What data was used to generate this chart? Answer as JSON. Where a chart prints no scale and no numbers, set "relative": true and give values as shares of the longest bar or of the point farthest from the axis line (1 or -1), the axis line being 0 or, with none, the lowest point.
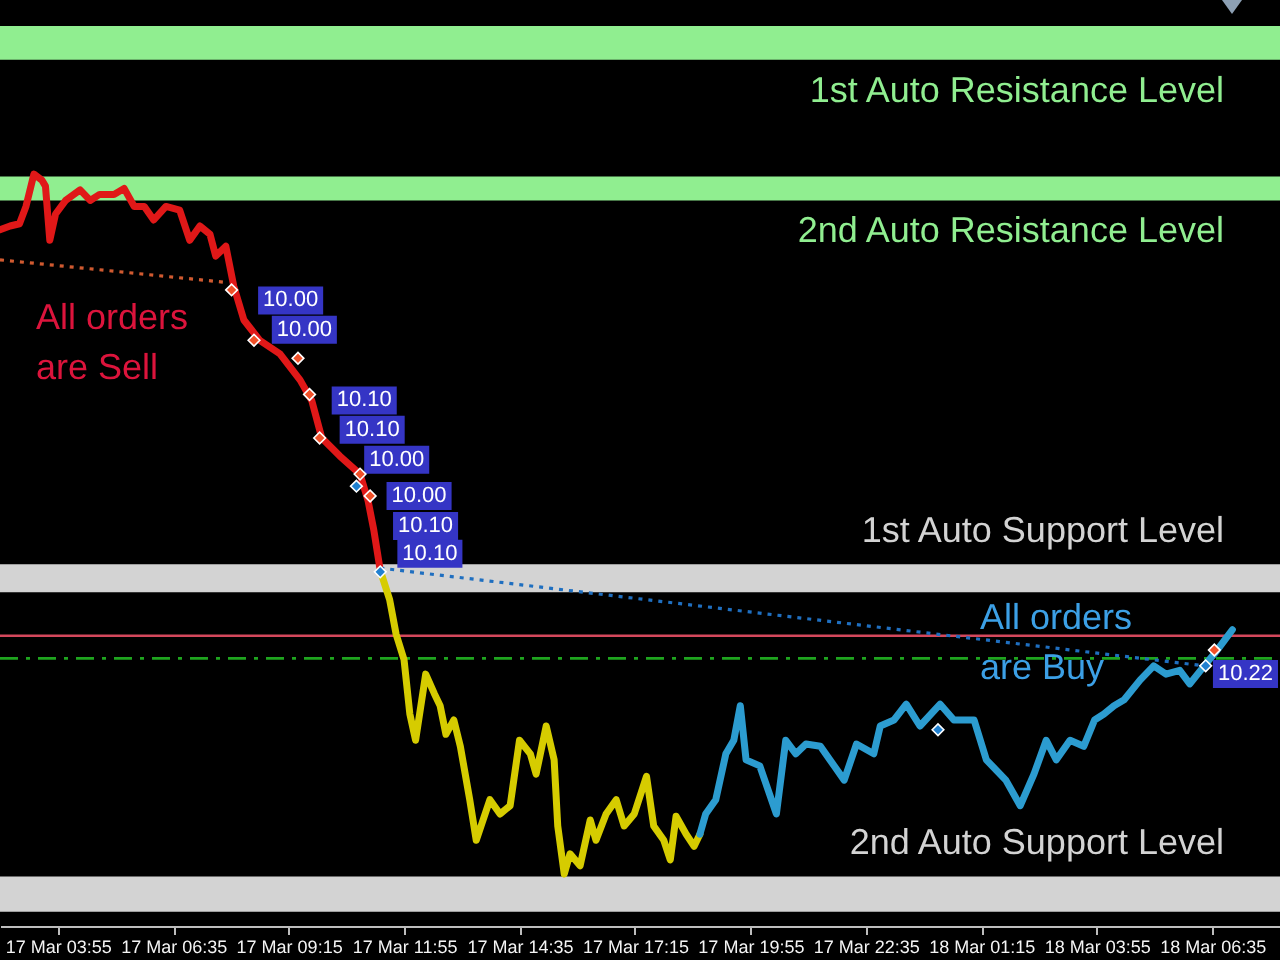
{
  "chart_data": {
    "type": "line",
    "relative": true,
    "xlim": [
      "--03-17T02:35",
      "--03-18T08:09"
    ],
    "xticks": [
      {
        "value": "--03-17T03:55",
        "label": "17 Mar 03:55"
      },
      {
        "value": "--03-17T06:35",
        "label": "17 Mar 06:35"
      },
      {
        "value": "--03-17T09:15",
        "label": "17 Mar 09:15"
      },
      {
        "value": "--03-17T11:55",
        "label": "17 Mar 11:55"
      },
      {
        "value": "--03-17T14:35",
        "label": "17 Mar 14:35"
      },
      {
        "value": "--03-17T17:15",
        "label": "17 Mar 17:15"
      },
      {
        "value": "--03-17T19:55",
        "label": "17 Mar 19:55"
      },
      {
        "value": "--03-17T22:35",
        "label": "17 Mar 22:35"
      },
      {
        "value": "--03-18T01:15",
        "label": "18 Mar 01:15"
      },
      {
        "value": "--03-18T03:55",
        "label": "18 Mar 03:55"
      },
      {
        "value": "--03-18T06:35",
        "label": "18 Mar 06:35"
      }
    ],
    "series": [
      {
        "color": "#e01818",
        "x": [
          "--03-17T02:35",
          "--03-17T02:49",
          "--03-17T03:02",
          "--03-17T03:11",
          "--03-17T03:22",
          "--03-17T03:33",
          "--03-17T03:38",
          "--03-17T03:44",
          "--03-17T03:52",
          "--03-17T04:06",
          "--03-17T04:26",
          "--03-17T04:40",
          "--03-17T04:53",
          "--03-17T05:13",
          "--03-17T05:27",
          "--03-17T05:41",
          "--03-17T05:55",
          "--03-17T06:08",
          "--03-17T06:25",
          "--03-17T06:44",
          "--03-17T06:58",
          "--03-17T07:12",
          "--03-17T07:26",
          "--03-17T07:34",
          "--03-17T07:48",
          "--03-17T07:59",
          "--03-17T08:13",
          "--03-17T08:35",
          "--03-17T09:03",
          "--03-17T09:31",
          "--03-17T09:47",
          "--03-17T10:01",
          "--03-17T10:26",
          "--03-17T10:54",
          "--03-17T11:05",
          "--03-17T11:13",
          "--03-17T11:22"
        ],
        "values": [
          0.926,
          0.931,
          0.934,
          0.957,
          1,
          0.992,
          0.984,
          0.912,
          0.947,
          0.965,
          0.979,
          0.965,
          0.973,
          0.973,
          0.981,
          0.957,
          0.957,
          0.939,
          0.957,
          0.952,
          0.912,
          0.931,
          0.92,
          0.891,
          0.904,
          0.851,
          0.806,
          0.779,
          0.761,
          0.726,
          0.699,
          0.649,
          0.625,
          0.601,
          0.566,
          0.527,
          0.473
        ]
      },
      {
        "color": "#d6cc00",
        "x": [
          "--03-17T11:22",
          "--03-17T11:35",
          "--03-17T11:44",
          "--03-17T11:55",
          "--03-17T12:03",
          "--03-17T12:11",
          "--03-17T12:25",
          "--03-17T12:37",
          "--03-17T12:45",
          "--03-17T12:53",
          "--03-17T13:04",
          "--03-17T13:13",
          "--03-17T13:26",
          "--03-17T13:35",
          "--03-17T13:54",
          "--03-17T14:08",
          "--03-17T14:22",
          "--03-17T14:35",
          "--03-17T14:50",
          "--03-17T14:58",
          "--03-17T15:12",
          "--03-17T15:23",
          "--03-17T15:28",
          "--03-17T15:37",
          "--03-17T15:45",
          "--03-17T15:59",
          "--03-17T16:13",
          "--03-17T16:21",
          "--03-17T16:35",
          "--03-17T16:49",
          "--03-17T17:00",
          "--03-17T17:14",
          "--03-17T17:31",
          "--03-17T17:41",
          "--03-17T17:55",
          "--03-17T18:04",
          "--03-17T18:12",
          "--03-17T18:26",
          "--03-17T18:37",
          "--03-17T18:45"
        ],
        "values": [
          0.473,
          0.434,
          0.388,
          0.354,
          0.282,
          0.247,
          0.335,
          0.309,
          0.293,
          0.255,
          0.274,
          0.239,
          0.168,
          0.114,
          0.168,
          0.149,
          0.16,
          0.247,
          0.229,
          0.202,
          0.266,
          0.221,
          0.133,
          0.069,
          0.096,
          0.08,
          0.141,
          0.114,
          0.149,
          0.168,
          0.133,
          0.149,
          0.199,
          0.133,
          0.114,
          0.088,
          0.146,
          0.122,
          0.106,
          0.122
        ]
      },
      {
        "color": "#2c9cd0",
        "x": [
          "--03-17T18:45",
          "--03-17T18:53",
          "--03-17T19:07",
          "--03-17T19:21",
          "--03-17T19:32",
          "--03-17T19:41",
          "--03-17T19:49",
          "--03-17T20:08",
          "--03-17T20:31",
          "--03-17T20:44",
          "--03-17T20:58",
          "--03-17T21:12",
          "--03-17T21:32",
          "--03-17T21:51",
          "--03-17T22:05",
          "--03-17T22:22",
          "--03-17T22:46",
          "--03-17T22:55",
          "--03-17T23:14",
          "--03-17T23:31",
          "--03-17T23:50",
          "--03-18T00:18",
          "--03-18T00:37",
          "--03-18T01:05",
          "--03-18T01:22",
          "--03-18T01:49",
          "--03-18T02:09",
          "--03-18T02:28",
          "--03-18T02:45",
          "--03-18T02:59",
          "--03-18T03:18",
          "--03-18T03:37",
          "--03-18T03:52",
          "--03-18T04:05",
          "--03-18T04:19",
          "--03-18T04:33",
          "--03-18T04:55",
          "--03-18T05:14",
          "--03-18T05:31",
          "--03-18T05:50",
          "--03-18T06:04",
          "--03-18T06:24",
          "--03-18T06:38",
          "--03-18T06:52",
          "--03-18T07:03"
        ],
        "values": [
          0.122,
          0.149,
          0.168,
          0.229,
          0.247,
          0.293,
          0.221,
          0.213,
          0.149,
          0.247,
          0.229,
          0.242,
          0.239,
          0.213,
          0.194,
          0.242,
          0.229,
          0.266,
          0.274,
          0.295,
          0.266,
          0.295,
          0.274,
          0.274,
          0.221,
          0.194,
          0.16,
          0.202,
          0.247,
          0.221,
          0.247,
          0.239,
          0.274,
          0.282,
          0.293,
          0.301,
          0.327,
          0.346,
          0.335,
          0.34,
          0.322,
          0.346,
          0.362,
          0.38,
          0.394
        ]
      },
      {
        "type": "line",
        "line_style": "dotted",
        "color": "#d05a30",
        "x": [
          "--03-17T02:35",
          "--03-17T07:48"
        ],
        "values": [
          0.886,
          0.856
        ]
      },
      {
        "type": "line",
        "line_style": "dotted",
        "color": "#1f6fc0",
        "x": [
          "--03-17T11:22",
          "--03-18T06:24"
        ],
        "values": [
          0.476,
          0.346
        ]
      },
      {
        "type": "scatter",
        "marker": "diamond",
        "color": "#f05028",
        "x": [
          "--03-17T07:56",
          "--03-17T08:27",
          "--03-17T09:28",
          "--03-17T09:44",
          "--03-17T09:58",
          "--03-17T10:54",
          "--03-17T11:08",
          "--03-18T06:38"
        ],
        "values": [
          0.846,
          0.779,
          0.755,
          0.707,
          0.649,
          0.601,
          0.572,
          0.367
        ]
      },
      {
        "type": "scatter",
        "marker": "diamond",
        "color": "#2080d0",
        "x": [
          "--03-17T10:49",
          "--03-17T11:22",
          "--03-18T00:15",
          "--03-18T06:26"
        ],
        "values": [
          0.585,
          0.471,
          0.261,
          0.346
        ]
      }
    ],
    "bands": [
      {
        "axis": "y",
        "from": 1.152,
        "to": 1.197,
        "label": "1st Auto Resistance Level",
        "color": "#90ee90"
      },
      {
        "axis": "y",
        "from": 0.965,
        "to": 0.997,
        "label": "2nd Auto Resistance Level",
        "color": "#90ee90"
      },
      {
        "axis": "y",
        "from": 0.444,
        "to": 0.481,
        "label": "1st Auto Support Level",
        "color": "#d3d3d3"
      },
      {
        "axis": "y",
        "from": 0.019,
        "to": 0.066,
        "label": "2nd Auto Support Level",
        "color": "#d3d3d3"
      }
    ],
    "ref_lines": [
      {
        "axis": "y",
        "value": 0.386,
        "color": "#d4485c"
      },
      {
        "axis": "y",
        "value": 0.356,
        "color": "#1fa51f",
        "line_style": "dashed"
      }
    ],
    "annotations": [
      "All orders are Sell",
      "All orders are Buy",
      {
        "text": "10.00",
        "x": "--03-17T08:05",
        "y": 0.832
      },
      {
        "text": "10.00",
        "x": "--03-17T08:24",
        "y": 0.793
      },
      {
        "text": "10.10",
        "x": "--03-17T09:47",
        "y": 0.699
      },
      {
        "text": "10.10",
        "x": "--03-17T09:58",
        "y": 0.66
      },
      {
        "text": "10.00",
        "x": "--03-17T10:32",
        "y": 0.62
      },
      {
        "text": "10.00",
        "x": "--03-17T11:03",
        "y": 0.572
      },
      {
        "text": "10.10",
        "x": "--03-17T11:12",
        "y": 0.532
      },
      {
        "text": "10.10",
        "x": "--03-17T11:18",
        "y": 0.495
      },
      {
        "text": "10.22",
        "x": "--03-18T06:16",
        "y": 0.335
      }
    ]
  }
}
